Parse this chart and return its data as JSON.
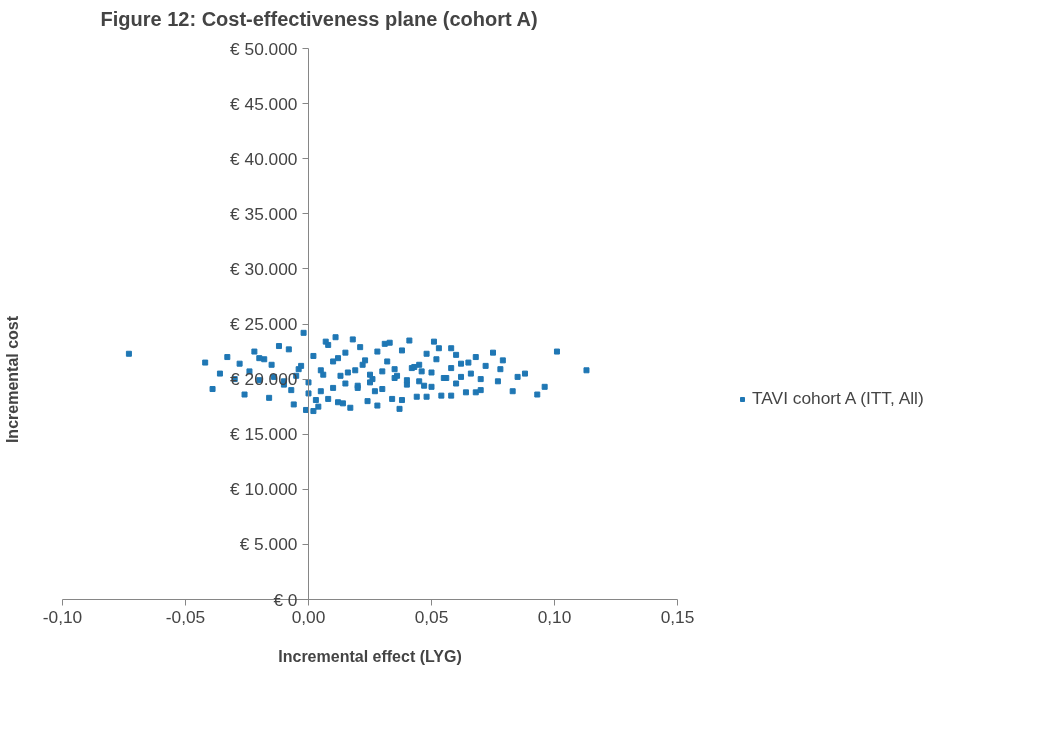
{
  "chart_data": {
    "type": "scatter",
    "title": "Figure 12: Cost-effectiveness plane (cohort A)",
    "xlabel": "Incremental effect (LYG)",
    "ylabel": "Incremental cost",
    "xlim": [
      -0.1,
      0.15
    ],
    "xticks": [
      {
        "value": -0.1,
        "label": "-0,10"
      },
      {
        "value": -0.05,
        "label": "-0,05"
      },
      {
        "value": 0,
        "label": "0,00"
      },
      {
        "value": 0.05,
        "label": "0,05"
      },
      {
        "value": 0.1,
        "label": "0,10"
      },
      {
        "value": 0.15,
        "label": "0,15"
      }
    ],
    "ylim": [
      0,
      50000
    ],
    "yticks": [
      {
        "value": 0,
        "label": "€ 0"
      },
      {
        "value": 5000,
        "label": "€ 5.000"
      },
      {
        "value": 10000,
        "label": "€ 10.000"
      },
      {
        "value": 15000,
        "label": "€ 15.000"
      },
      {
        "value": 20000,
        "label": "€ 20.000"
      },
      {
        "value": 25000,
        "label": "€ 25.000"
      },
      {
        "value": 30000,
        "label": "€ 30.000"
      },
      {
        "value": 35000,
        "label": "€ 35.000"
      },
      {
        "value": 40000,
        "label": "€ 40.000"
      },
      {
        "value": 45000,
        "label": "€ 45.000"
      },
      {
        "value": 50000,
        "label": "€ 50.000"
      }
    ],
    "marker": "square",
    "legend": "right",
    "grid": false,
    "series": [
      {
        "name": "TAVI cohort A (ITT, All)",
        "color": "#1f77b4",
        "x": [
          -0.073,
          0.113,
          0.101,
          0.093,
          0.096,
          0.085,
          0.083,
          0.079,
          0.077,
          0.075,
          0.072,
          0.07,
          0.068,
          0.066,
          0.064,
          0.062,
          0.06,
          0.058,
          0.056,
          0.054,
          0.052,
          0.05,
          0.048,
          0.046,
          0.044,
          0.042,
          0.04,
          0.038,
          0.036,
          0.034,
          0.032,
          0.03,
          0.028,
          0.026,
          0.024,
          0.022,
          0.02,
          0.018,
          0.016,
          0.014,
          0.012,
          0.01,
          0.008,
          0.006,
          0.004,
          0.002,
          0.0,
          -0.002,
          -0.004,
          -0.006,
          -0.008,
          -0.01,
          -0.012,
          -0.014,
          -0.016,
          -0.018,
          -0.02,
          -0.022,
          -0.024,
          -0.026,
          -0.028,
          -0.03,
          -0.033,
          -0.036,
          -0.039,
          -0.042,
          0.055,
          0.053,
          0.047,
          0.043,
          0.037,
          0.033,
          0.027,
          0.023,
          0.017,
          0.013,
          0.007,
          0.003,
          -0.003,
          -0.007,
          0.062,
          0.058,
          0.045,
          0.035,
          0.025,
          0.015,
          0.005,
          -0.005,
          -0.015,
          0.065,
          0.05,
          0.04,
          0.03,
          0.02,
          0.01,
          0.0,
          0.07,
          0.06,
          0.045,
          0.035,
          0.025,
          0.015,
          0.005,
          -0.01,
          -0.02,
          0.019,
          0.012,
          0.008,
          0.028,
          0.038,
          0.048,
          0.058,
          0.068,
          0.078,
          0.088,
          0.002,
          -0.001,
          0.031,
          0.041,
          0.051,
          0.011,
          0.021
        ],
        "values": [
          22300,
          20800,
          22500,
          18600,
          19300,
          20200,
          18900,
          21700,
          19800,
          22400,
          21200,
          19000,
          22000,
          20500,
          18800,
          21400,
          19600,
          22800,
          20100,
          18500,
          21800,
          19300,
          22300,
          20700,
          18400,
          21000,
          19500,
          22600,
          20300,
          18200,
          21600,
          19100,
          22500,
          20000,
          18000,
          21300,
          19400,
          23600,
          20600,
          17800,
          21900,
          19200,
          23100,
          20400,
          17500,
          22100,
          19700,
          24200,
          20900,
          17700,
          22700,
          19500,
          23000,
          20200,
          18300,
          21800,
          19900,
          22500,
          20700,
          18600,
          21400,
          20000,
          22000,
          20500,
          19100,
          21500,
          20100,
          22800,
          19400,
          21100,
          17300,
          23300,
          18900,
          21700,
          17400,
          20300,
          23400,
          18100,
          21200,
          19000,
          20200,
          21000,
          19800,
          20900,
          20400,
          19600,
          20800,
          20300,
          21300,
          21500,
          20600,
          19900,
          20700,
          19200,
          21600,
          18700,
          20000,
          22200,
          21300,
          20100,
          19700,
          22400,
          18900,
          19800,
          21900,
          20800,
          17900,
          18200,
          17600,
          18100,
          18400,
          18500,
          18800,
          20900,
          20500,
          17100,
          17200,
          23200,
          23500,
          23400,
          23800,
          22900
        ]
      }
    ]
  }
}
